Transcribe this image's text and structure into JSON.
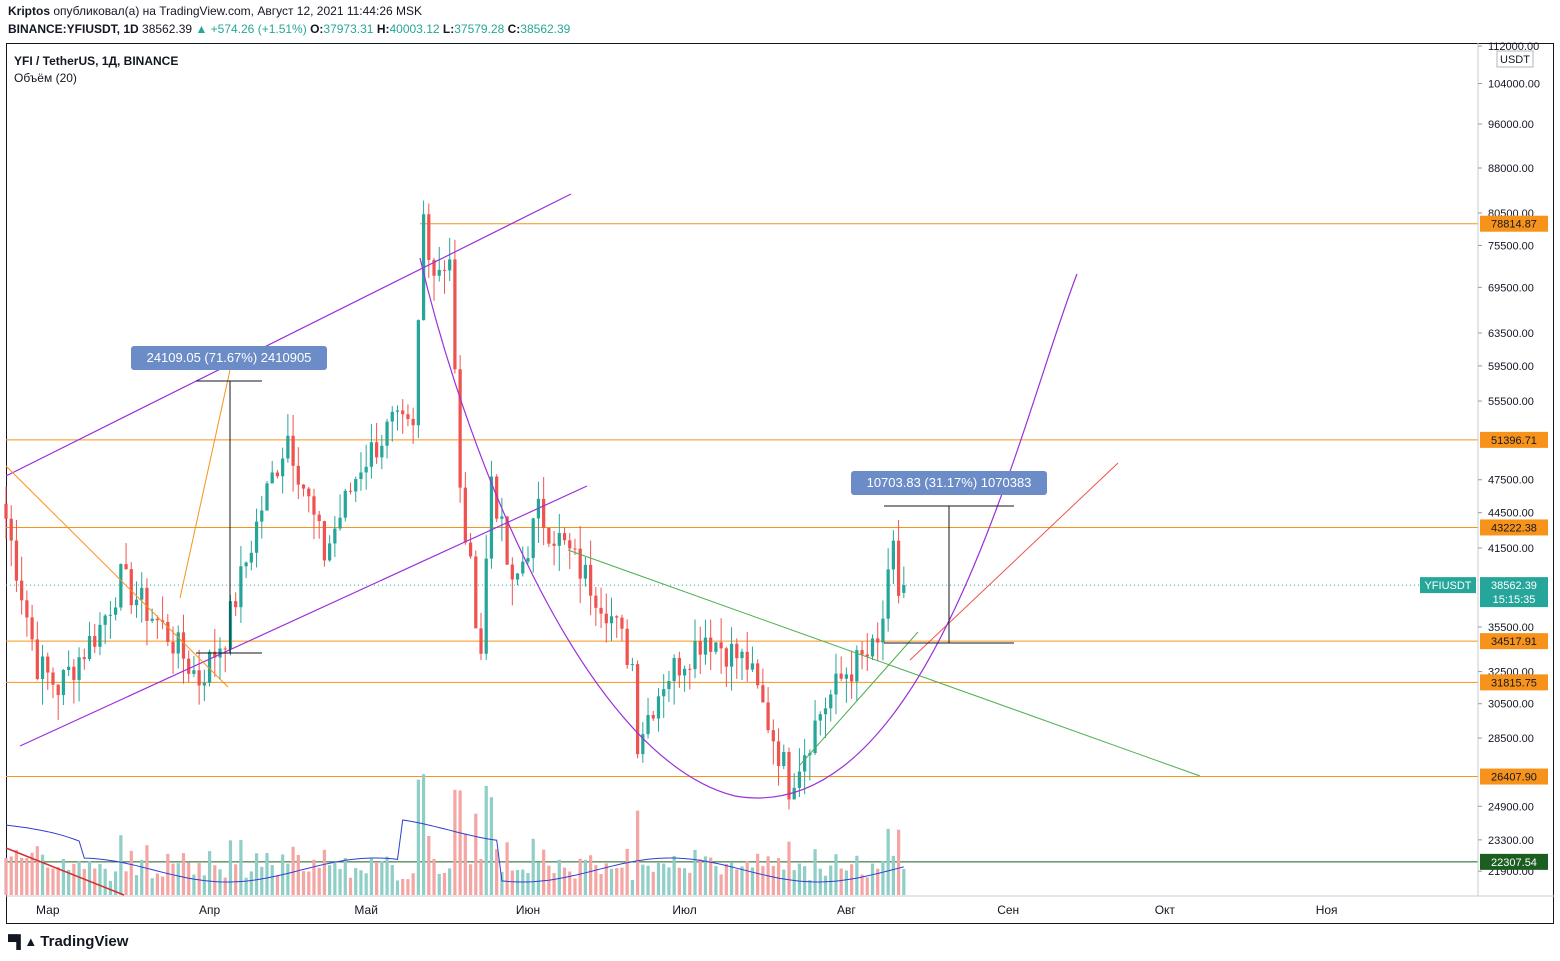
{
  "header": {
    "author": "Kriptos",
    "published_text": "опубликовал(а) на TradingView.com, Август 12, 2021 11:44:26 MSK",
    "symbol_full": "BINANCE:YFIUSDT, 1D",
    "last_price": "38562.39",
    "change_text": "▲ +574.26 (+1.51%)",
    "open_label": "O:",
    "open": "37973.31",
    "high_label": "H:",
    "high": "40003.12",
    "low_label": "L:",
    "low": "37579.28",
    "close_label": "C:",
    "close": "38562.39"
  },
  "legend": {
    "title": "YFI / TetherUS, 1Д, BINANCE",
    "volume_label": "Объём (20)"
  },
  "colors": {
    "up": "#26a69a",
    "down": "#ef5350",
    "volume_up": "#8fcfc7",
    "volume_down": "#f4a6a5",
    "level": "#f7931a",
    "purple": "#9b30d9",
    "green_trend": "#4caf50",
    "red_trend": "#ef5350",
    "measure": "#6b8cc7",
    "price_tag": "#26a69a"
  },
  "price_scale": {
    "currency": "USDT",
    "ticks": [
      "112000.00",
      "104000.00",
      "96000.00",
      "88000.00",
      "80500.00",
      "75500.00",
      "69500.00",
      "63500.00",
      "59500.00",
      "55500.00",
      "47500.00",
      "44500.00",
      "41500.00",
      "35500.00",
      "32500.00",
      "30500.00",
      "28500.00",
      "24900.00",
      "23300.00",
      "21900.00"
    ],
    "tag_values": [
      "78814.87",
      "51396.71",
      "43222.38",
      "34517.91",
      "31815.75",
      "26407.90",
      "22307.54"
    ],
    "current_price": "38562.39",
    "countdown": "15:15:35",
    "symbol_tag": "YFIUSDT"
  },
  "time_axis": [
    "Мар",
    "Апр",
    "Май",
    "Июн",
    "Июл",
    "Авг",
    "Сен",
    "Окт",
    "Ноя"
  ],
  "annotations": {
    "measure_1": "24109.05 (71.67%) 2410905",
    "measure_2": "10703.83 (31.17%) 1070383"
  },
  "footer": {
    "brand": "TradingView"
  },
  "chart_data": {
    "type": "candlestick",
    "title": "YFI / TetherUS, 1Д, BINANCE",
    "ylabel": "USDT",
    "ylim": [
      21000,
      112000
    ],
    "y_scale": "log",
    "x_range": [
      "2021-02-21",
      "2021-11-30"
    ],
    "candles_start": "2021-02-21",
    "candles_end": "2021-08-12",
    "grid": false,
    "horizontal_levels": [
      78814.87,
      51396.71,
      43222.38,
      34517.91,
      31815.75,
      26407.9,
      22307.54
    ],
    "last_candle": {
      "date": "2021-08-12",
      "open": 37973.31,
      "high": 40003.12,
      "low": 37579.28,
      "close": 38562.39,
      "change": 574.26,
      "change_pct": 1.51
    },
    "price_anchors": [
      {
        "date": "2021-02-21",
        "close": 44000
      },
      {
        "date": "2021-02-27",
        "close": 33000
      },
      {
        "date": "2021-03-03",
        "close": 31500
      },
      {
        "date": "2021-03-11",
        "close": 35500
      },
      {
        "date": "2021-03-15",
        "close": 39000
      },
      {
        "date": "2021-03-24",
        "close": 35000
      },
      {
        "date": "2021-03-30",
        "close": 32000
      },
      {
        "date": "2021-04-04",
        "close": 35000
      },
      {
        "date": "2021-04-11",
        "close": 45000
      },
      {
        "date": "2021-04-16",
        "close": 52000
      },
      {
        "date": "2021-04-23",
        "close": 41000
      },
      {
        "date": "2021-04-30",
        "close": 49000
      },
      {
        "date": "2021-05-06",
        "close": 53000
      },
      {
        "date": "2021-05-10",
        "close": 52000
      },
      {
        "date": "2021-05-12",
        "close": 80000
      },
      {
        "date": "2021-05-14",
        "close": 72000
      },
      {
        "date": "2021-05-17",
        "close": 74000
      },
      {
        "date": "2021-05-19",
        "close": 46000
      },
      {
        "date": "2021-05-23",
        "close": 34000
      },
      {
        "date": "2021-05-25",
        "close": 48000
      },
      {
        "date": "2021-05-29",
        "close": 38000
      },
      {
        "date": "2021-06-03",
        "close": 44500
      },
      {
        "date": "2021-06-09",
        "close": 41000
      },
      {
        "date": "2021-06-16",
        "close": 37000
      },
      {
        "date": "2021-06-21",
        "close": 33000
      },
      {
        "date": "2021-06-22",
        "close": 28500
      },
      {
        "date": "2021-06-27",
        "close": 32000
      },
      {
        "date": "2021-07-05",
        "close": 35000
      },
      {
        "date": "2021-07-13",
        "close": 33000
      },
      {
        "date": "2021-07-20",
        "close": 27000
      },
      {
        "date": "2021-07-21",
        "close": 26000
      },
      {
        "date": "2021-07-27",
        "close": 30000
      },
      {
        "date": "2021-08-01",
        "close": 32500
      },
      {
        "date": "2021-08-07",
        "close": 34000
      },
      {
        "date": "2021-08-10",
        "close": 41000
      },
      {
        "date": "2021-08-11",
        "close": 37973.31
      },
      {
        "date": "2021-08-12",
        "close": 38562.39
      }
    ]
  }
}
